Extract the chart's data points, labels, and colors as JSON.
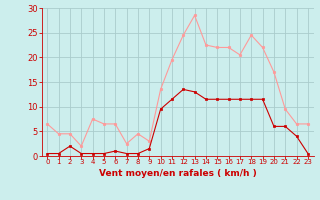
{
  "hours": [
    0,
    1,
    2,
    3,
    4,
    5,
    6,
    7,
    8,
    9,
    10,
    11,
    12,
    13,
    14,
    15,
    16,
    17,
    18,
    19,
    20,
    21,
    22,
    23
  ],
  "wind_avg": [
    0.5,
    0.5,
    2,
    0.5,
    0.5,
    0.5,
    1,
    0.5,
    0.5,
    1.5,
    9.5,
    11.5,
    13.5,
    13,
    11.5,
    11.5,
    11.5,
    11.5,
    11.5,
    11.5,
    6,
    6,
    4,
    0.5
  ],
  "wind_gust": [
    6.5,
    4.5,
    4.5,
    2,
    7.5,
    6.5,
    6.5,
    2.5,
    4.5,
    3,
    13.5,
    19.5,
    24.5,
    28.5,
    22.5,
    22,
    22,
    20.5,
    24.5,
    22,
    17,
    9.5,
    6.5,
    6.5
  ],
  "avg_color": "#cc0000",
  "gust_color": "#ff9999",
  "bg_color": "#cceeed",
  "grid_color": "#aacccc",
  "xlabel": "Vent moyen/en rafales ( km/h )",
  "xlabel_color": "#cc0000",
  "tick_color": "#cc0000",
  "ylim": [
    0,
    30
  ],
  "yticks": [
    0,
    5,
    10,
    15,
    20,
    25,
    30
  ],
  "figwidth": 3.2,
  "figheight": 2.0,
  "dpi": 100
}
